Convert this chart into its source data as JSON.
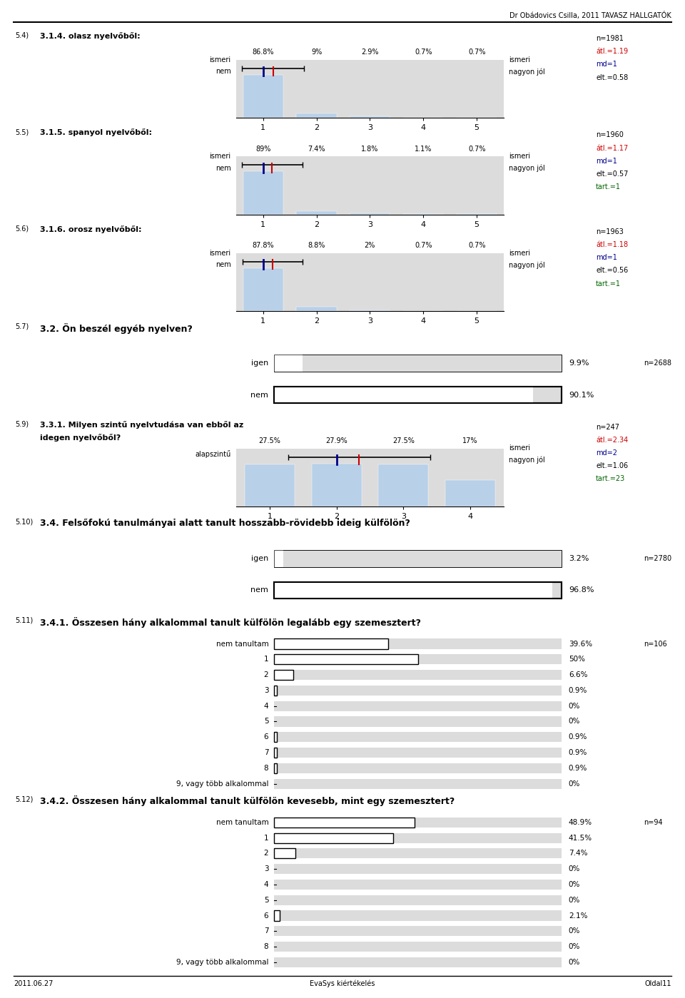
{
  "header_text": "Dr Obádovics Csilla, 2011 TAVASZ HALLGATÓK",
  "footer_left": "2011.06.27",
  "footer_center": "EvaSys kiértékelés",
  "footer_right": "Oldal11",
  "sections": [
    {
      "type": "likert",
      "num": "5.4)",
      "question": "3.1.4. olasz nyelvőből:",
      "left_label": "nem\nismeri",
      "right_label": "nagyon jól\nismeri",
      "percentages": [
        "86.8%",
        "9%",
        "2.9%",
        "0.7%",
        "0.7%"
      ],
      "bar_values": [
        86.8,
        9.0,
        2.9,
        0.7,
        0.7
      ],
      "mean": 1.19,
      "median": 1,
      "sd": 0.58,
      "n": "n=1981",
      "atl": "átl.=1.19",
      "md": "md=1",
      "elt": "elt.=0.58",
      "tart": null,
      "xmax": 5,
      "xticks": [
        1,
        2,
        3,
        4,
        5
      ]
    },
    {
      "type": "likert",
      "num": "5.5)",
      "question": "3.1.5. spanyol nyelvőből:",
      "left_label": "nem\nismeri",
      "right_label": "nagyon jól\nismeri",
      "percentages": [
        "89%",
        "7.4%",
        "1.8%",
        "1.1%",
        "0.7%"
      ],
      "bar_values": [
        89.0,
        7.4,
        1.8,
        1.1,
        0.7
      ],
      "mean": 1.17,
      "median": 1,
      "sd": 0.57,
      "n": "n=1960",
      "atl": "átl.=1.17",
      "md": "md=1",
      "elt": "elt.=0.57",
      "tart": "tart.=1",
      "xmax": 5,
      "xticks": [
        1,
        2,
        3,
        4,
        5
      ]
    },
    {
      "type": "likert",
      "num": "5.6)",
      "question": "3.1.6. orosz nyelvőből:",
      "left_label": "nem\nismeri",
      "right_label": "nagyon jól\nismeri",
      "percentages": [
        "87.8%",
        "8.8%",
        "2%",
        "0.7%",
        "0.7%"
      ],
      "bar_values": [
        87.8,
        8.8,
        2.0,
        0.7,
        0.7
      ],
      "mean": 1.18,
      "median": 1,
      "sd": 0.56,
      "n": "n=1963",
      "atl": "átl.=1.18",
      "md": "md=1",
      "elt": "elt.=0.56",
      "tart": "tart.=1",
      "xmax": 5,
      "xticks": [
        1,
        2,
        3,
        4,
        5
      ]
    },
    {
      "type": "yesno_title",
      "num": "5.7)",
      "question": "3.2. Ön beszél egyéb nyelven?"
    },
    {
      "type": "yesno",
      "igen_pct": 9.9,
      "nem_pct": 90.1,
      "n": "n=2688"
    },
    {
      "type": "likert",
      "num": "5.9)",
      "question": "3.3.1. Milyen szintű nyelvtudása van ebből az\nidegen nyelvőből?",
      "left_label": "alapszintű",
      "right_label": "nagyon jól\nismeri",
      "percentages": [
        "27.5%",
        "27.9%",
        "27.5%",
        "17%"
      ],
      "bar_values": [
        27.5,
        27.9,
        27.5,
        17.0
      ],
      "mean": 2.34,
      "median": 2,
      "sd": 1.06,
      "n": "n=247",
      "atl": "átl.=2.34",
      "md": "md=2",
      "elt": "elt.=1.06",
      "tart": "tart.=23",
      "xmax": 4,
      "xticks": [
        1,
        2,
        3,
        4
      ]
    },
    {
      "type": "yesno_title",
      "num": "5.10)",
      "question": "3.4. Felsőfokú tanulmányai alatt tanult hosszabb-rövidebb ideig külfölön?"
    },
    {
      "type": "yesno",
      "igen_pct": 3.2,
      "nem_pct": 96.8,
      "n": "n=2780"
    },
    {
      "type": "barchart_title",
      "num": "5.11)",
      "question": "3.4.1. Összesen hány alkalommal tanult külfölön legalább egy szemesztert?"
    },
    {
      "type": "barchart",
      "n": "n=106",
      "labels": [
        "nem tanultam",
        "1",
        "2",
        "3",
        "4",
        "5",
        "6",
        "7",
        "8",
        "9, vagy több alkalommal"
      ],
      "values": [
        39.6,
        50.0,
        6.6,
        0.9,
        0.0,
        0.0,
        0.9,
        0.9,
        0.9,
        0.0
      ]
    },
    {
      "type": "barchart_title",
      "num": "5.12)",
      "question": "3.4.2. Összesen hány alkalommal tanult külfölön kevesebb, mint egy szemesztert?"
    },
    {
      "type": "barchart",
      "n": "n=94",
      "labels": [
        "nem tanultam",
        "1",
        "2",
        "3",
        "4",
        "5",
        "6",
        "7",
        "8",
        "9, vagy több alkalommal"
      ],
      "values": [
        48.9,
        41.5,
        7.4,
        0.0,
        0.0,
        0.0,
        2.1,
        0.0,
        0.0,
        0.0
      ]
    }
  ],
  "colors": {
    "bar_fill": "#b8d0e8",
    "bar_bg": "#dcdcdc",
    "median_line": "#00008b",
    "mean_line": "#cc0000",
    "text_red": "#cc0000",
    "text_blue": "#00008b",
    "text_green": "#006400"
  }
}
